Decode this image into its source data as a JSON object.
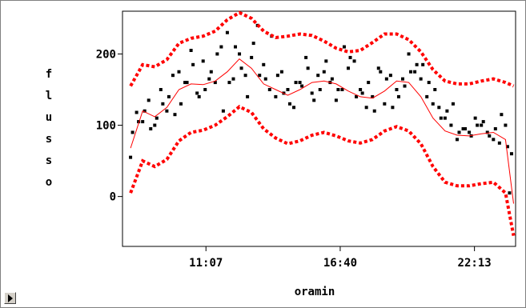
{
  "chart_data": {
    "type": "scatter",
    "xlabel": "oramin",
    "ylabel": "flusso",
    "xlim": [
      "07:40",
      "23:55"
    ],
    "ylim": [
      -70,
      260
    ],
    "x_ticks": [
      "11:07",
      "16:40",
      "22:13"
    ],
    "y_ticks": [
      0,
      100,
      200
    ],
    "grid": false,
    "colors": {
      "points": "#000000",
      "fit": "#ff0000",
      "bands": "#ff0000"
    },
    "series": [
      {
        "kind": "scatter",
        "x": [
          "08:00",
          "08:15",
          "08:30",
          "08:45",
          "09:00",
          "09:15",
          "09:30",
          "09:45",
          "10:00",
          "10:15",
          "10:30",
          "10:45",
          "11:00",
          "11:15",
          "11:30",
          "11:45",
          "12:00",
          "12:15",
          "12:30",
          "12:45",
          "13:00",
          "13:15",
          "13:30",
          "13:45",
          "14:00",
          "14:15",
          "14:30",
          "14:45",
          "15:00",
          "15:15",
          "15:30",
          "15:45",
          "16:00",
          "16:15",
          "16:30",
          "16:45",
          "17:00",
          "17:15",
          "17:30",
          "17:45",
          "18:00",
          "18:15",
          "18:30",
          "18:45",
          "19:00",
          "19:15",
          "19:30",
          "19:45",
          "20:00",
          "20:15",
          "20:30",
          "20:45",
          "21:00",
          "21:15",
          "21:30",
          "21:45",
          "22:00",
          "22:15",
          "22:30",
          "22:45",
          "23:00",
          "23:15",
          "23:30",
          "23:40",
          "08:05",
          "08:35",
          "09:05",
          "09:35",
          "10:05",
          "10:35",
          "11:05",
          "11:35",
          "12:05",
          "12:35",
          "13:05",
          "13:35",
          "14:05",
          "14:35",
          "15:05",
          "15:35",
          "16:05",
          "16:35",
          "17:05",
          "17:35",
          "18:05",
          "18:35",
          "19:05",
          "19:35",
          "20:05",
          "20:35",
          "21:05",
          "21:35",
          "22:05",
          "22:35",
          "23:05",
          "23:35",
          "08:20",
          "08:50",
          "09:20",
          "09:50",
          "10:20",
          "10:50",
          "11:20",
          "11:50",
          "12:20",
          "12:50",
          "13:20",
          "13:50",
          "14:20",
          "14:50",
          "15:20",
          "15:50",
          "16:20",
          "16:50",
          "17:20",
          "17:50",
          "18:20",
          "18:50",
          "19:20",
          "19:50",
          "20:20",
          "20:50",
          "21:20",
          "21:50",
          "22:20",
          "22:50",
          "23:20",
          "23:45"
        ],
        "y": [
          55,
          118,
          105,
          135,
          100,
          150,
          120,
          170,
          175,
          160,
          205,
          145,
          190,
          165,
          160,
          210,
          230,
          165,
          200,
          170,
          195,
          240,
          185,
          150,
          140,
          175,
          150,
          125,
          160,
          195,
          145,
          170,
          175,
          160,
          135,
          150,
          180,
          190,
          150,
          125,
          140,
          180,
          130,
          170,
          150,
          165,
          200,
          175,
          165,
          140,
          130,
          125,
          110,
          100,
          80,
          95,
          90,
          110,
          100,
          90,
          80,
          75,
          100,
          5,
          90,
          120,
          110,
          140,
          130,
          185,
          150,
          200,
          160,
          180,
          215,
          165,
          170,
          130,
          155,
          135,
          190,
          150,
          195,
          145,
          120,
          165,
          140,
          175,
          185,
          150,
          120,
          90,
          85,
          105,
          95,
          70,
          105,
          95,
          130,
          115,
          160,
          140,
          175,
          120,
          210,
          140,
          170,
          225,
          145,
          160,
          180,
          150,
          165,
          210,
          140,
          160,
          175,
          125,
          155,
          185,
          160,
          110,
          130,
          95,
          100,
          85,
          115,
          60
        ]
      },
      {
        "kind": "line",
        "name": "fit",
        "x": [
          "08:00",
          "08:30",
          "09:00",
          "09:30",
          "10:00",
          "10:30",
          "11:00",
          "11:30",
          "12:00",
          "12:30",
          "13:00",
          "13:30",
          "14:00",
          "14:30",
          "15:00",
          "15:30",
          "16:00",
          "16:30",
          "17:00",
          "17:30",
          "18:00",
          "18:30",
          "19:00",
          "19:30",
          "20:00",
          "20:30",
          "21:00",
          "21:30",
          "22:00",
          "22:30",
          "23:00",
          "23:30",
          "23:50"
        ],
        "y": [
          68,
          120,
          112,
          125,
          150,
          158,
          157,
          162,
          175,
          193,
          180,
          158,
          150,
          142,
          150,
          160,
          162,
          158,
          148,
          140,
          138,
          148,
          162,
          160,
          140,
          110,
          92,
          86,
          85,
          88,
          90,
          80,
          -10
        ]
      },
      {
        "kind": "line",
        "name": "upper",
        "x": [
          "08:00",
          "08:30",
          "09:00",
          "09:30",
          "10:00",
          "10:30",
          "11:00",
          "11:30",
          "12:00",
          "12:30",
          "13:00",
          "13:30",
          "14:00",
          "14:30",
          "15:00",
          "15:30",
          "16:00",
          "16:30",
          "17:00",
          "17:30",
          "18:00",
          "18:30",
          "19:00",
          "19:30",
          "20:00",
          "20:30",
          "21:00",
          "21:30",
          "22:00",
          "22:30",
          "23:00",
          "23:30",
          "23:50"
        ],
        "y": [
          155,
          185,
          182,
          192,
          215,
          222,
          225,
          232,
          248,
          258,
          250,
          232,
          223,
          225,
          228,
          226,
          218,
          208,
          203,
          205,
          216,
          228,
          228,
          220,
          203,
          178,
          162,
          158,
          158,
          162,
          165,
          160,
          155
        ]
      },
      {
        "kind": "line",
        "name": "lower",
        "x": [
          "08:00",
          "08:30",
          "09:00",
          "09:30",
          "10:00",
          "10:30",
          "11:00",
          "11:30",
          "12:00",
          "12:30",
          "13:00",
          "13:30",
          "14:00",
          "14:30",
          "15:00",
          "15:30",
          "16:00",
          "16:30",
          "17:00",
          "17:30",
          "18:00",
          "18:30",
          "19:00",
          "19:30",
          "20:00",
          "20:30",
          "21:00",
          "21:30",
          "22:00",
          "22:30",
          "23:00",
          "23:30",
          "23:50"
        ],
        "y": [
          5,
          50,
          42,
          52,
          78,
          90,
          93,
          100,
          112,
          126,
          118,
          95,
          82,
          74,
          78,
          86,
          90,
          85,
          78,
          75,
          80,
          92,
          98,
          92,
          74,
          42,
          20,
          15,
          15,
          18,
          20,
          5,
          -55
        ]
      }
    ]
  }
}
